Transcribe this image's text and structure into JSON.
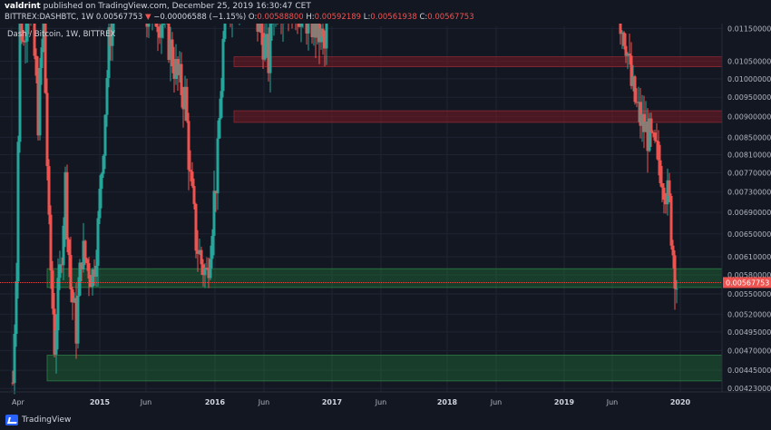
{
  "header": {
    "author": "valdrint",
    "published": "published on TradingView.com, December 25, 2019 16:30:47 CET",
    "symbol": "BITTREX:DASHBTC, 1W",
    "last": "0.00567753",
    "change_arrow": "▼",
    "change": "−0.00006588 (−1.15%)",
    "open_label": "O:",
    "open": "0.00588800",
    "high_label": "H:",
    "high": "0.00592189",
    "low_label": "L:",
    "low": "0.00561938",
    "close_label": "C:",
    "close": "0.00567753"
  },
  "symbol_caption": "Dash / Bitcoin, 1W, BITTREX",
  "footer": {
    "logo_text": "TradingView",
    "logo_icon": "tradingview-logo-icon"
  },
  "colors": {
    "background": "#131722",
    "grid": "#1f2433",
    "up": "#26a69a",
    "down": "#ef5350",
    "resistance_zone": "#5a1a22",
    "support_zone": "#1b4a2a",
    "price_line": "#ef5350"
  },
  "chart_data": {
    "type": "candlestick",
    "title": "Dash / Bitcoin, 1W, BITTREX",
    "ylim": [
      0.00419,
      0.01157
    ],
    "y_ticks": [
      "0.01150000",
      "0.01050000",
      "0.01000000",
      "0.00950000",
      "0.00900000",
      "0.00850000",
      "0.00810000",
      "0.00770000",
      "0.00730000",
      "0.00690000",
      "0.00650000",
      "0.00610000",
      "0.00580000",
      "0.00550000",
      "0.00520000",
      "0.00495000",
      "0.00470000",
      "0.00445000",
      "0.00423000"
    ],
    "x_ticks": [
      "Apr",
      "2015",
      "Jun",
      "2016",
      "Jun",
      "2017",
      "Jun",
      "2018",
      "Jun",
      "2019",
      "Jun",
      "2020"
    ],
    "last_price": "0.00567753",
    "zones": [
      {
        "kind": "resistance",
        "from": 0.01034,
        "to": 0.01063
      },
      {
        "kind": "resistance",
        "from": 0.00886,
        "to": 0.00915
      },
      {
        "kind": "support",
        "from": 0.0056,
        "to": 0.0059
      },
      {
        "kind": "support",
        "from": 0.00432,
        "to": 0.00464
      }
    ]
  }
}
